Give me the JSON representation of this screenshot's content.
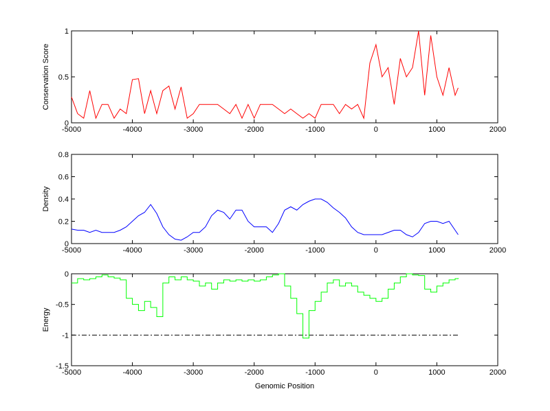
{
  "chart_data": [
    {
      "type": "line",
      "ylabel": "Conservation Score",
      "color": "#ff0000",
      "x": [
        -5000,
        -4900,
        -4800,
        -4700,
        -4600,
        -4500,
        -4400,
        -4300,
        -4200,
        -4100,
        -4000,
        -3900,
        -3800,
        -3700,
        -3600,
        -3500,
        -3400,
        -3300,
        -3200,
        -3100,
        -3000,
        -2900,
        -2800,
        -2700,
        -2600,
        -2500,
        -2400,
        -2300,
        -2200,
        -2100,
        -2000,
        -1900,
        -1800,
        -1700,
        -1600,
        -1500,
        -1400,
        -1300,
        -1200,
        -1100,
        -1000,
        -900,
        -800,
        -700,
        -600,
        -500,
        -400,
        -300,
        -200,
        -100,
        0,
        100,
        200,
        300,
        400,
        500,
        600,
        700,
        800,
        900,
        1000,
        1100,
        1200,
        1300,
        1350
      ],
      "values": [
        0.28,
        0.1,
        0.05,
        0.35,
        0.05,
        0.2,
        0.2,
        0.05,
        0.15,
        0.1,
        0.47,
        0.48,
        0.1,
        0.35,
        0.1,
        0.35,
        0.4,
        0.15,
        0.39,
        0.05,
        0.1,
        0.2,
        0.2,
        0.2,
        0.2,
        0.15,
        0.1,
        0.2,
        0.05,
        0.2,
        0.05,
        0.2,
        0.2,
        0.2,
        0.15,
        0.1,
        0.15,
        0.1,
        0.05,
        0.1,
        0.05,
        0.2,
        0.2,
        0.2,
        0.1,
        0.2,
        0.15,
        0.2,
        0.05,
        0.65,
        0.85,
        0.5,
        0.6,
        0.2,
        0.7,
        0.5,
        0.6,
        1,
        0.3,
        0.95,
        0.5,
        0.3,
        0.6,
        0.3,
        0.38
      ],
      "xlim": [
        -5000,
        2000
      ],
      "xticks": [
        -5000,
        -4000,
        -3000,
        -2000,
        -1000,
        0,
        1000,
        2000
      ],
      "ylim": [
        0,
        1
      ],
      "yticks": [
        0,
        0.5,
        1
      ]
    },
    {
      "type": "line",
      "ylabel": "Density",
      "color": "#0000ff",
      "x": [
        -5000,
        -4900,
        -4800,
        -4700,
        -4600,
        -4500,
        -4400,
        -4300,
        -4200,
        -4100,
        -4000,
        -3900,
        -3800,
        -3700,
        -3600,
        -3500,
        -3400,
        -3300,
        -3200,
        -3100,
        -3000,
        -2900,
        -2800,
        -2700,
        -2600,
        -2500,
        -2400,
        -2300,
        -2200,
        -2100,
        -2000,
        -1900,
        -1800,
        -1700,
        -1600,
        -1500,
        -1400,
        -1300,
        -1200,
        -1100,
        -1000,
        -900,
        -800,
        -700,
        -600,
        -500,
        -400,
        -300,
        -200,
        -100,
        0,
        100,
        200,
        300,
        400,
        500,
        600,
        700,
        800,
        900,
        1000,
        1100,
        1200,
        1300,
        1350
      ],
      "values": [
        0.13,
        0.12,
        0.12,
        0.1,
        0.12,
        0.1,
        0.1,
        0.1,
        0.12,
        0.15,
        0.2,
        0.25,
        0.28,
        0.35,
        0.27,
        0.15,
        0.08,
        0.04,
        0.03,
        0.06,
        0.1,
        0.1,
        0.15,
        0.25,
        0.3,
        0.28,
        0.22,
        0.3,
        0.3,
        0.2,
        0.15,
        0.15,
        0.15,
        0.1,
        0.18,
        0.3,
        0.33,
        0.3,
        0.35,
        0.38,
        0.4,
        0.4,
        0.37,
        0.32,
        0.28,
        0.23,
        0.15,
        0.1,
        0.08,
        0.08,
        0.08,
        0.08,
        0.1,
        0.12,
        0.12,
        0.08,
        0.06,
        0.1,
        0.18,
        0.2,
        0.2,
        0.18,
        0.2,
        0.12,
        0.08
      ],
      "xlim": [
        -5000,
        2000
      ],
      "xticks": [
        -5000,
        -4000,
        -3000,
        -2000,
        -1000,
        0,
        1000,
        2000
      ],
      "ylim": [
        0,
        0.8
      ],
      "yticks": [
        0,
        0.2,
        0.4,
        0.6,
        0.8
      ]
    },
    {
      "type": "line",
      "step": true,
      "ylabel": "Energy",
      "xlabel": "Genomic Position",
      "color": "#00ff00",
      "x": [
        -5000,
        -4900,
        -4800,
        -4700,
        -4600,
        -4500,
        -4400,
        -4300,
        -4200,
        -4100,
        -4000,
        -3900,
        -3800,
        -3700,
        -3600,
        -3500,
        -3400,
        -3300,
        -3200,
        -3100,
        -3000,
        -2900,
        -2800,
        -2700,
        -2600,
        -2500,
        -2400,
        -2300,
        -2200,
        -2100,
        -2000,
        -1900,
        -1800,
        -1700,
        -1600,
        -1500,
        -1400,
        -1300,
        -1200,
        -1100,
        -1000,
        -900,
        -800,
        -700,
        -600,
        -500,
        -400,
        -300,
        -200,
        -100,
        0,
        100,
        200,
        300,
        400,
        500,
        600,
        700,
        800,
        900,
        1000,
        1100,
        1200,
        1300,
        1350
      ],
      "values": [
        -0.15,
        -0.08,
        -0.1,
        -0.08,
        -0.05,
        -0.02,
        -0.05,
        -0.07,
        -0.1,
        -0.4,
        -0.5,
        -0.6,
        -0.45,
        -0.55,
        -0.7,
        -0.15,
        -0.05,
        -0.1,
        -0.05,
        -0.1,
        -0.12,
        -0.2,
        -0.15,
        -0.25,
        -0.15,
        -0.1,
        -0.12,
        -0.1,
        -0.12,
        -0.1,
        -0.12,
        -0.1,
        -0.05,
        -0.02,
        0,
        -0.2,
        -0.4,
        -0.65,
        -1.05,
        -0.6,
        -0.45,
        -0.3,
        -0.15,
        -0.1,
        -0.2,
        -0.15,
        -0.2,
        -0.3,
        -0.35,
        -0.4,
        -0.45,
        -0.4,
        -0.25,
        -0.15,
        -0.05,
        0,
        -0.02,
        -0.03,
        -0.25,
        -0.3,
        -0.2,
        -0.15,
        -0.1,
        -0.08,
        -0.07
      ],
      "reference_line": {
        "y": -1,
        "x": [
          -5000,
          1350
        ]
      },
      "xlim": [
        -5000,
        2000
      ],
      "xticks": [
        -5000,
        -4000,
        -3000,
        -2000,
        -1000,
        0,
        1000,
        2000
      ],
      "ylim": [
        -1.5,
        0
      ],
      "yticks": [
        -1.5,
        -1,
        -0.5,
        0
      ]
    }
  ]
}
